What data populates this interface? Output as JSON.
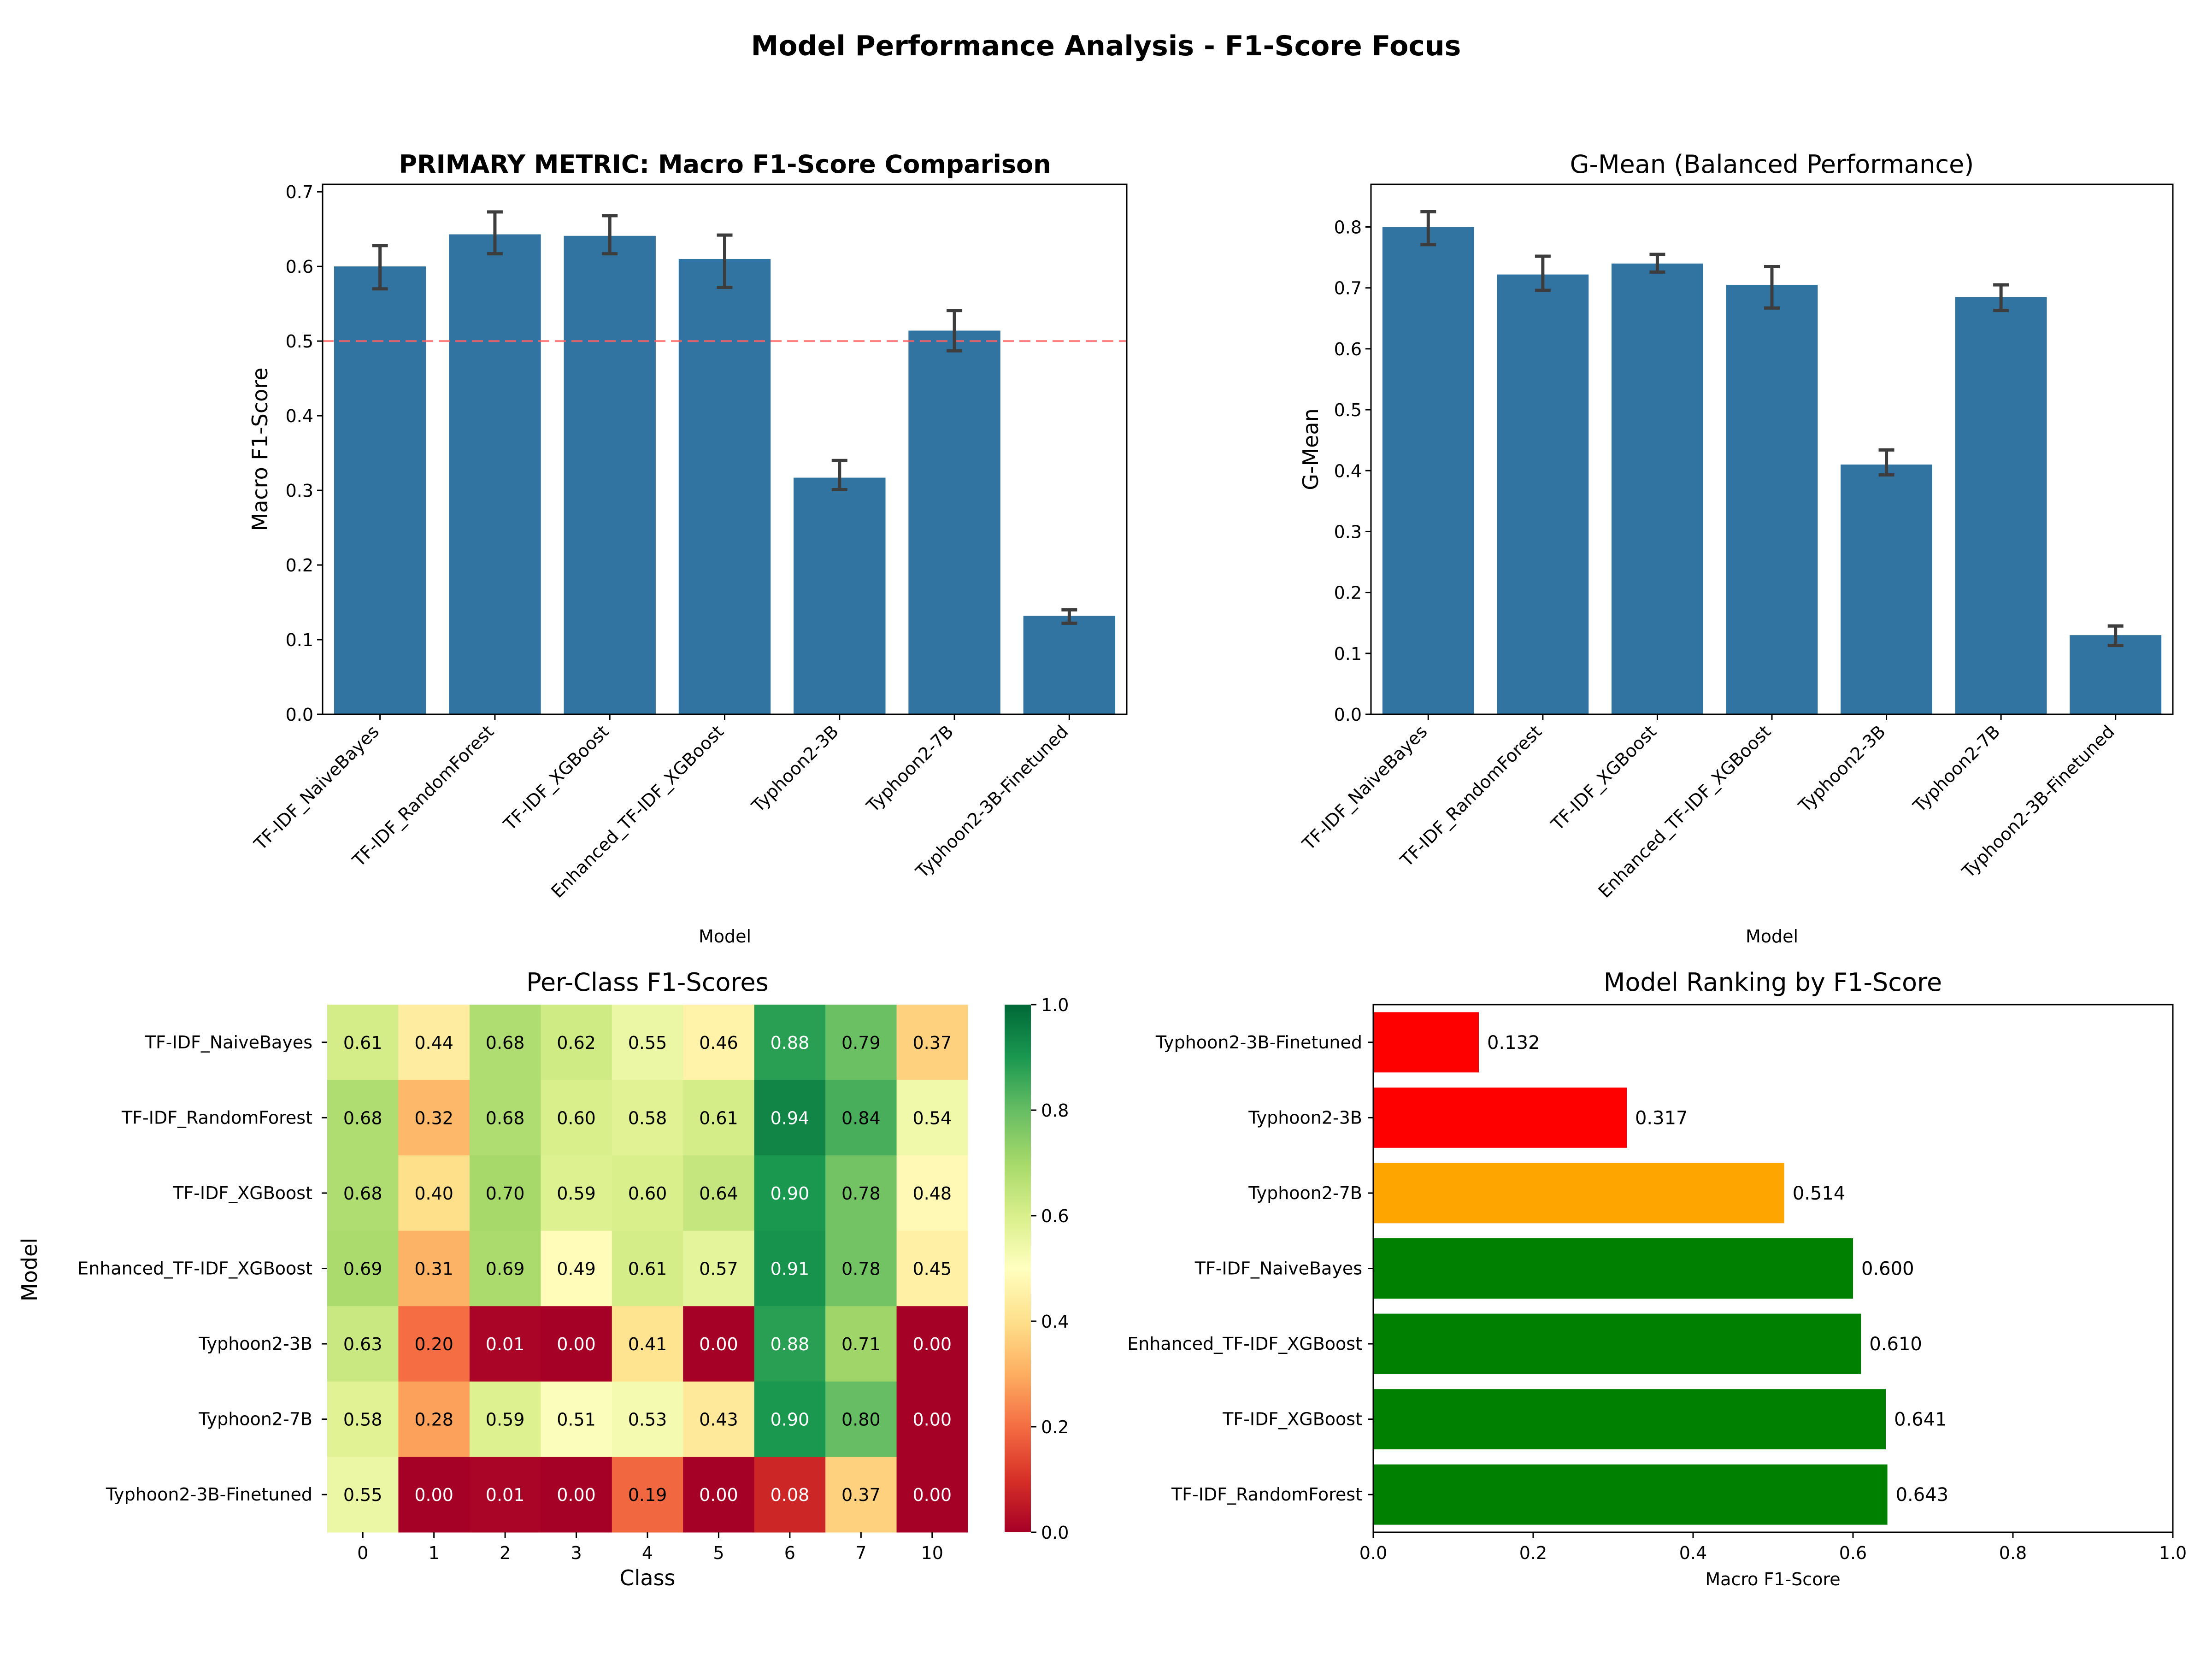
{
  "figure": {
    "title": "Model Performance Analysis - F1-Score Focus"
  },
  "chart_data": [
    {
      "type": "bar",
      "title": "PRIMARY METRIC: Macro F1-Score Comparison",
      "xlabel": "Model",
      "ylabel": "Macro F1-Score",
      "categories": [
        "TF-IDF_NaiveBayes",
        "TF-IDF_RandomForest",
        "TF-IDF_XGBoost",
        "Enhanced_TF-IDF_XGBoost",
        "Typhoon2-3B",
        "Typhoon2-7B",
        "Typhoon2-3B-Finetuned"
      ],
      "values": [
        0.6,
        0.643,
        0.641,
        0.61,
        0.317,
        0.514,
        0.132
      ],
      "error_low": [
        0.57,
        0.617,
        0.617,
        0.572,
        0.301,
        0.487,
        0.122
      ],
      "error_high": [
        0.628,
        0.673,
        0.668,
        0.642,
        0.34,
        0.541,
        0.14
      ],
      "reference_line": 0.5,
      "ylim": [
        0,
        0.71
      ],
      "yticks": [
        0.0,
        0.1,
        0.2,
        0.3,
        0.4,
        0.5,
        0.6,
        0.7
      ],
      "color": "#3274a1",
      "line_color": "#ff6060"
    },
    {
      "type": "bar",
      "title": "G-Mean (Balanced Performance)",
      "xlabel": "Model",
      "ylabel": "G-Mean",
      "categories": [
        "TF-IDF_NaiveBayes",
        "TF-IDF_RandomForest",
        "TF-IDF_XGBoost",
        "Enhanced_TF-IDF_XGBoost",
        "Typhoon2-3B",
        "Typhoon2-7B",
        "Typhoon2-3B-Finetuned"
      ],
      "values": [
        0.8,
        0.722,
        0.74,
        0.705,
        0.41,
        0.685,
        0.13
      ],
      "error_low": [
        0.771,
        0.696,
        0.726,
        0.667,
        0.393,
        0.663,
        0.113
      ],
      "error_high": [
        0.825,
        0.752,
        0.755,
        0.735,
        0.434,
        0.705,
        0.145
      ],
      "ylim": [
        0,
        0.87
      ],
      "yticks": [
        0.0,
        0.1,
        0.2,
        0.3,
        0.4,
        0.5,
        0.6,
        0.7,
        0.8
      ],
      "color": "#3274a1"
    },
    {
      "type": "heatmap",
      "title": "Per-Class F1-Scores",
      "xlabel": "Class",
      "ylabel": "Model",
      "rows": [
        "TF-IDF_NaiveBayes",
        "TF-IDF_RandomForest",
        "TF-IDF_XGBoost",
        "Enhanced_TF-IDF_XGBoost",
        "Typhoon2-3B",
        "Typhoon2-7B",
        "Typhoon2-3B-Finetuned"
      ],
      "cols": [
        "0",
        "1",
        "2",
        "3",
        "4",
        "5",
        "6",
        "7",
        "10"
      ],
      "values": [
        [
          0.61,
          0.44,
          0.68,
          0.62,
          0.55,
          0.46,
          0.88,
          0.79,
          0.37
        ],
        [
          0.68,
          0.32,
          0.68,
          0.6,
          0.58,
          0.61,
          0.94,
          0.84,
          0.54
        ],
        [
          0.68,
          0.4,
          0.7,
          0.59,
          0.6,
          0.64,
          0.9,
          0.78,
          0.48
        ],
        [
          0.69,
          0.31,
          0.69,
          0.49,
          0.61,
          0.57,
          0.91,
          0.78,
          0.45
        ],
        [
          0.63,
          0.2,
          0.01,
          0.0,
          0.41,
          0.0,
          0.88,
          0.71,
          0.0
        ],
        [
          0.58,
          0.28,
          0.59,
          0.51,
          0.53,
          0.43,
          0.9,
          0.8,
          0.0
        ],
        [
          0.55,
          0.0,
          0.01,
          0.0,
          0.19,
          0.0,
          0.08,
          0.37,
          0.0
        ]
      ],
      "colormap": "RdYlGn",
      "vmin": 0.0,
      "vmax": 1.0,
      "colorbar_ticks": [
        0.0,
        0.2,
        0.4,
        0.6,
        0.8,
        1.0
      ]
    },
    {
      "type": "bar",
      "orientation": "horizontal",
      "title": "Model Ranking by F1-Score",
      "xlabel": "Macro F1-Score",
      "ylabel": "",
      "categories": [
        "Typhoon2-3B-Finetuned",
        "Typhoon2-3B",
        "Typhoon2-7B",
        "TF-IDF_NaiveBayes",
        "Enhanced_TF-IDF_XGBoost",
        "TF-IDF_XGBoost",
        "TF-IDF_RandomForest"
      ],
      "values": [
        0.132,
        0.317,
        0.514,
        0.6,
        0.61,
        0.641,
        0.643
      ],
      "value_labels": [
        "0.132",
        "0.317",
        "0.514",
        "0.600",
        "0.610",
        "0.641",
        "0.643"
      ],
      "colors": [
        "#ff0000",
        "#ff0000",
        "#ffa500",
        "#008000",
        "#008000",
        "#008000",
        "#008000"
      ],
      "xlim": [
        0,
        1.0
      ],
      "xticks": [
        0.0,
        0.2,
        0.4,
        0.6,
        0.8,
        1.0
      ]
    }
  ]
}
